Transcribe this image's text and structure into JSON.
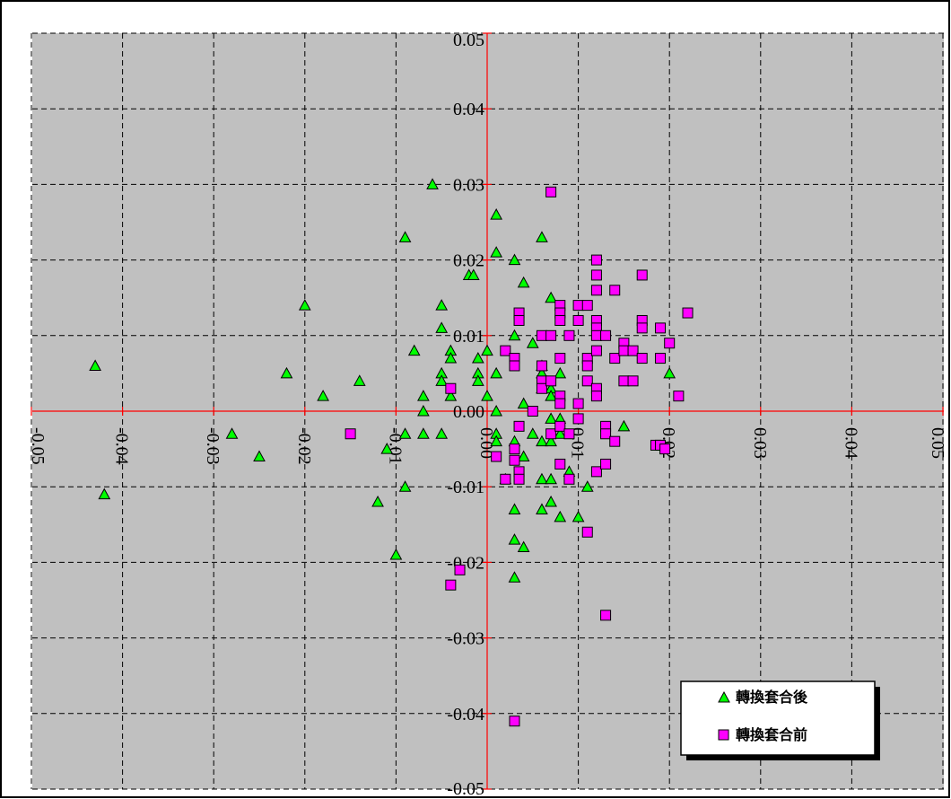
{
  "chart_data": {
    "type": "scatter",
    "title": "",
    "xlabel": "",
    "ylabel": "",
    "xlim": [
      -0.05,
      0.05
    ],
    "ylim": [
      -0.05,
      0.05
    ],
    "x_ticks": [
      "-0.05",
      "-0.04",
      "-0.03",
      "-0.02",
      "-0.01",
      "0.00",
      "0.01",
      "0.02",
      "0.03",
      "0.04",
      "0.05"
    ],
    "y_ticks": [
      "0.05",
      "0.04",
      "0.03",
      "0.02",
      "0.01",
      "0.00",
      "-0.01",
      "-0.02",
      "-0.03",
      "-0.04",
      "-0.05"
    ],
    "grid": true,
    "background": "#c0c0c0",
    "axis_color": "#ff0000",
    "legend_position": "bottom-right",
    "series": [
      {
        "name": "轉換套合後",
        "marker": "triangle",
        "color": "#00ff00",
        "points": [
          [
            -0.043,
            0.006
          ],
          [
            -0.042,
            -0.011
          ],
          [
            -0.028,
            -0.003
          ],
          [
            -0.025,
            -0.006
          ],
          [
            -0.022,
            0.005
          ],
          [
            -0.02,
            0.014
          ],
          [
            -0.018,
            0.002
          ],
          [
            -0.014,
            0.004
          ],
          [
            -0.012,
            -0.012
          ],
          [
            -0.011,
            -0.005
          ],
          [
            -0.01,
            -0.019
          ],
          [
            -0.009,
            0.023
          ],
          [
            -0.009,
            -0.003
          ],
          [
            -0.009,
            -0.01
          ],
          [
            -0.008,
            0.008
          ],
          [
            -0.007,
            0.002
          ],
          [
            -0.007,
            0.0
          ],
          [
            -0.007,
            -0.003
          ],
          [
            -0.006,
            0.03
          ],
          [
            -0.005,
            0.014
          ],
          [
            -0.005,
            0.011
          ],
          [
            -0.005,
            0.005
          ],
          [
            -0.005,
            0.004
          ],
          [
            -0.005,
            -0.003
          ],
          [
            -0.004,
            0.008
          ],
          [
            -0.004,
            0.007
          ],
          [
            -0.004,
            0.002
          ],
          [
            -0.002,
            0.018
          ],
          [
            -0.0015,
            0.018
          ],
          [
            -0.001,
            0.007
          ],
          [
            -0.001,
            0.005
          ],
          [
            -0.001,
            0.004
          ],
          [
            0.0,
            0.008
          ],
          [
            0.0,
            0.002
          ],
          [
            0.001,
            0.026
          ],
          [
            0.001,
            0.021
          ],
          [
            0.001,
            0.005
          ],
          [
            0.001,
            0.0
          ],
          [
            0.001,
            -0.003
          ],
          [
            0.001,
            -0.004
          ],
          [
            0.002,
            -0.009
          ],
          [
            0.003,
            0.02
          ],
          [
            0.003,
            0.01
          ],
          [
            0.003,
            -0.004
          ],
          [
            0.003,
            -0.013
          ],
          [
            0.003,
            -0.017
          ],
          [
            0.003,
            -0.022
          ],
          [
            0.004,
            0.017
          ],
          [
            0.004,
            0.001
          ],
          [
            0.004,
            -0.006
          ],
          [
            0.004,
            -0.018
          ],
          [
            0.005,
            0.009
          ],
          [
            0.005,
            -0.003
          ],
          [
            0.006,
            0.023
          ],
          [
            0.006,
            0.006
          ],
          [
            0.006,
            0.005
          ],
          [
            0.006,
            0.003
          ],
          [
            0.006,
            -0.004
          ],
          [
            0.006,
            -0.009
          ],
          [
            0.006,
            -0.013
          ],
          [
            0.007,
            0.015
          ],
          [
            0.007,
            0.003
          ],
          [
            0.007,
            0.002
          ],
          [
            0.007,
            -0.001
          ],
          [
            0.007,
            -0.004
          ],
          [
            0.007,
            -0.009
          ],
          [
            0.007,
            -0.012
          ],
          [
            0.008,
            0.005
          ],
          [
            0.008,
            -0.001
          ],
          [
            0.008,
            -0.003
          ],
          [
            0.008,
            -0.014
          ],
          [
            0.009,
            -0.008
          ],
          [
            0.01,
            -0.014
          ],
          [
            0.011,
            -0.01
          ],
          [
            0.015,
            -0.002
          ],
          [
            0.02,
            0.005
          ]
        ]
      },
      {
        "name": "轉換套合前",
        "marker": "square",
        "color": "#ff00ff",
        "points": [
          [
            -0.015,
            -0.003
          ],
          [
            -0.004,
            0.003
          ],
          [
            -0.004,
            -0.023
          ],
          [
            -0.003,
            -0.021
          ],
          [
            0.001,
            -0.006
          ],
          [
            0.002,
            0.008
          ],
          [
            0.002,
            -0.009
          ],
          [
            0.003,
            0.007
          ],
          [
            0.003,
            0.006
          ],
          [
            0.003,
            -0.005
          ],
          [
            0.003,
            -0.0065
          ],
          [
            0.003,
            -0.041
          ],
          [
            0.0035,
            0.013
          ],
          [
            0.0035,
            0.012
          ],
          [
            0.0035,
            -0.002
          ],
          [
            0.0035,
            -0.008
          ],
          [
            0.0035,
            -0.009
          ],
          [
            0.005,
            0.0
          ],
          [
            0.006,
            0.01
          ],
          [
            0.006,
            0.006
          ],
          [
            0.006,
            0.004
          ],
          [
            0.006,
            0.003
          ],
          [
            0.007,
            0.029
          ],
          [
            0.007,
            0.01
          ],
          [
            0.007,
            0.004
          ],
          [
            0.007,
            -0.003
          ],
          [
            0.008,
            0.014
          ],
          [
            0.008,
            0.013
          ],
          [
            0.008,
            0.012
          ],
          [
            0.008,
            0.007
          ],
          [
            0.008,
            0.002
          ],
          [
            0.008,
            0.001
          ],
          [
            0.008,
            -0.002
          ],
          [
            0.008,
            -0.007
          ],
          [
            0.009,
            0.01
          ],
          [
            0.009,
            -0.003
          ],
          [
            0.009,
            -0.009
          ],
          [
            0.01,
            0.014
          ],
          [
            0.01,
            0.012
          ],
          [
            0.01,
            0.001
          ],
          [
            0.01,
            -0.001
          ],
          [
            0.011,
            0.014
          ],
          [
            0.011,
            0.007
          ],
          [
            0.011,
            0.006
          ],
          [
            0.011,
            0.004
          ],
          [
            0.011,
            -0.016
          ],
          [
            0.012,
            0.02
          ],
          [
            0.012,
            0.018
          ],
          [
            0.012,
            0.016
          ],
          [
            0.012,
            0.012
          ],
          [
            0.012,
            0.011
          ],
          [
            0.012,
            0.01
          ],
          [
            0.012,
            0.008
          ],
          [
            0.012,
            0.003
          ],
          [
            0.012,
            0.002
          ],
          [
            0.012,
            -0.008
          ],
          [
            0.013,
            0.01
          ],
          [
            0.013,
            -0.002
          ],
          [
            0.013,
            -0.003
          ],
          [
            0.013,
            -0.007
          ],
          [
            0.013,
            -0.027
          ],
          [
            0.014,
            0.016
          ],
          [
            0.014,
            0.007
          ],
          [
            0.014,
            -0.004
          ],
          [
            0.015,
            0.009
          ],
          [
            0.015,
            0.008
          ],
          [
            0.015,
            0.004
          ],
          [
            0.016,
            0.008
          ],
          [
            0.016,
            0.004
          ],
          [
            0.017,
            0.018
          ],
          [
            0.017,
            0.012
          ],
          [
            0.017,
            0.011
          ],
          [
            0.017,
            0.007
          ],
          [
            0.0185,
            -0.0045
          ],
          [
            0.019,
            0.011
          ],
          [
            0.019,
            0.007
          ],
          [
            0.019,
            -0.0045
          ],
          [
            0.0195,
            -0.005
          ],
          [
            0.02,
            0.009
          ],
          [
            0.021,
            0.002
          ],
          [
            0.022,
            0.013
          ]
        ]
      }
    ]
  }
}
